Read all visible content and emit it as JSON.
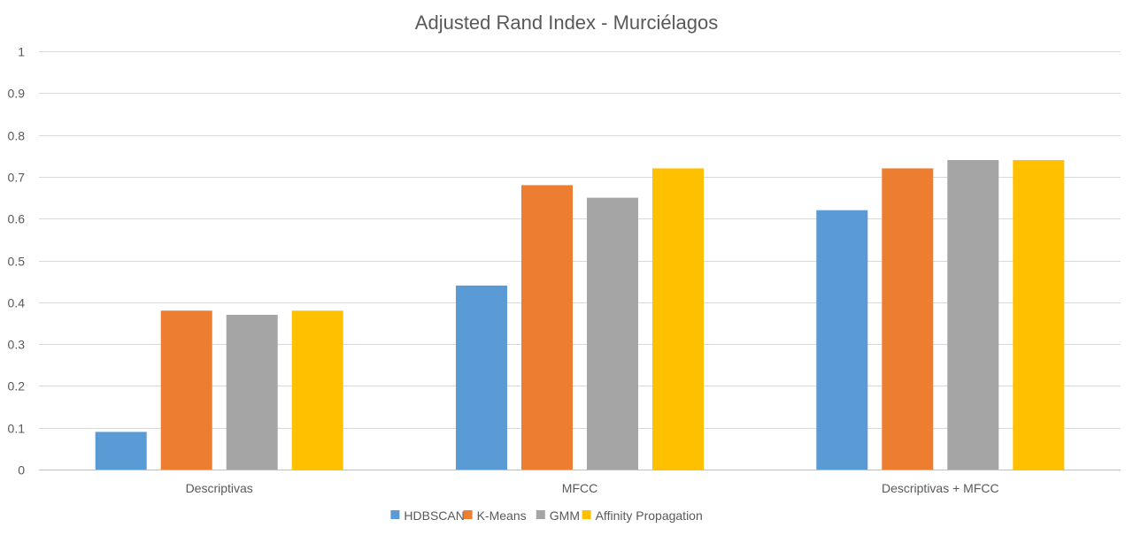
{
  "chart_data": {
    "type": "bar",
    "title": "Adjusted Rand Index - Murciélagos",
    "xlabel": "",
    "ylabel": "",
    "categories": [
      "Descriptivas",
      "MFCC",
      "Descriptivas + MFCC"
    ],
    "series": [
      {
        "name": "HDBSCAN",
        "color": "#5b9bd5",
        "values": [
          0.09,
          0.44,
          0.62
        ]
      },
      {
        "name": "K-Means",
        "color": "#ed7d31",
        "values": [
          0.38,
          0.68,
          0.72
        ]
      },
      {
        "name": "GMM",
        "color": "#a5a5a5",
        "values": [
          0.37,
          0.65,
          0.74
        ]
      },
      {
        "name": "Affinity Propagation",
        "color": "#ffc000",
        "values": [
          0.38,
          0.72,
          0.74
        ]
      }
    ],
    "ylim": [
      0,
      1
    ],
    "yticks": [
      "0",
      "0.1",
      "0.2",
      "0.3",
      "0.4",
      "0.5",
      "0.6",
      "0.7",
      "0.8",
      "0.9",
      "1"
    ],
    "grid": true,
    "legend_position": "bottom"
  }
}
